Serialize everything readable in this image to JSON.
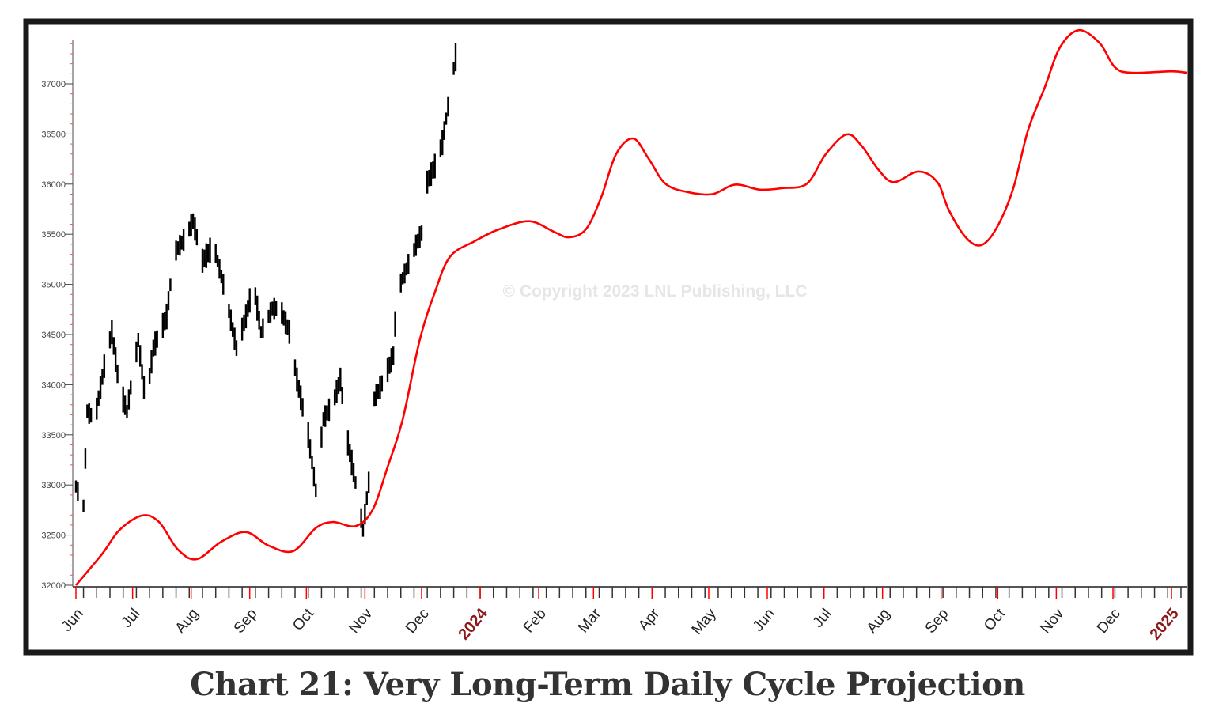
{
  "chart_data": {
    "type": "line",
    "title": "Chart 21: Very Long-Term Daily Cycle Projection",
    "watermark": "© Copyright 2023 LNL Publishing, LLC",
    "xlabel": "",
    "ylabel": "",
    "xlim": [
      "2023-06-01",
      "2025-01-09"
    ],
    "ylim": [
      32000,
      37560
    ],
    "y_ticks": [
      32000,
      32500,
      33000,
      33500,
      34000,
      34500,
      35000,
      35500,
      36000,
      36500,
      37000
    ],
    "x_ticks": [
      {
        "date": "2023-06-01",
        "label": "Jun"
      },
      {
        "date": "2023-07-01",
        "label": "Jul"
      },
      {
        "date": "2023-08-01",
        "label": "Aug"
      },
      {
        "date": "2023-09-01",
        "label": "Sep"
      },
      {
        "date": "2023-10-01",
        "label": "Oct"
      },
      {
        "date": "2023-11-01",
        "label": "Nov"
      },
      {
        "date": "2023-12-01",
        "label": "Dec"
      },
      {
        "date": "2024-01-01",
        "label": "2024",
        "year": true
      },
      {
        "date": "2024-02-01",
        "label": "Feb"
      },
      {
        "date": "2024-03-01",
        "label": "Mar"
      },
      {
        "date": "2024-04-01",
        "label": "Apr"
      },
      {
        "date": "2024-05-01",
        "label": "May"
      },
      {
        "date": "2024-06-01",
        "label": "Jun"
      },
      {
        "date": "2024-07-01",
        "label": "Jul"
      },
      {
        "date": "2024-08-01",
        "label": "Aug"
      },
      {
        "date": "2024-09-01",
        "label": "Sep"
      },
      {
        "date": "2024-10-01",
        "label": "Oct"
      },
      {
        "date": "2024-11-01",
        "label": "Nov"
      },
      {
        "date": "2024-12-01",
        "label": "Dec"
      },
      {
        "date": "2025-01-01",
        "label": "2025",
        "year": true
      }
    ],
    "grid": false,
    "series": [
      {
        "style": "daily price bars",
        "color": "#000000",
        "points": [
          [
            "2023-06-01",
            32985
          ],
          [
            "2023-06-05",
            32790
          ],
          [
            "2023-06-07",
            33735
          ],
          [
            "2023-06-11",
            33655
          ],
          [
            "2023-06-17",
            34290
          ],
          [
            "2023-06-20",
            34525
          ],
          [
            "2023-06-24",
            33970
          ],
          [
            "2023-06-28",
            33735
          ],
          [
            "2023-07-04",
            34445
          ],
          [
            "2023-07-08",
            33815
          ],
          [
            "2023-07-12",
            34365
          ],
          [
            "2023-07-19",
            34680
          ],
          [
            "2023-07-23",
            35310
          ],
          [
            "2023-07-29",
            35470
          ],
          [
            "2023-08-02",
            35630
          ],
          [
            "2023-08-07",
            35235
          ],
          [
            "2023-08-13",
            35390
          ],
          [
            "2023-08-19",
            34920
          ],
          [
            "2023-08-25",
            34365
          ],
          [
            "2023-08-30",
            34680
          ],
          [
            "2023-09-03",
            35000
          ],
          [
            "2023-09-07",
            34525
          ],
          [
            "2023-09-13",
            34760
          ],
          [
            "2023-09-17",
            34760
          ],
          [
            "2023-09-22",
            34525
          ],
          [
            "2023-09-26",
            34050
          ],
          [
            "2023-10-02",
            33500
          ],
          [
            "2023-10-06",
            32945
          ],
          [
            "2023-10-10",
            33655
          ],
          [
            "2023-10-15",
            33815
          ],
          [
            "2023-10-19",
            34050
          ],
          [
            "2023-10-23",
            33420
          ],
          [
            "2023-10-27",
            33025
          ],
          [
            "2023-10-31",
            32550
          ],
          [
            "2023-11-03",
            33025
          ],
          [
            "2023-11-05",
            33815
          ],
          [
            "2023-11-11",
            34050
          ],
          [
            "2023-11-16",
            34290
          ],
          [
            "2023-11-18",
            34920
          ],
          [
            "2023-11-23",
            35155
          ],
          [
            "2023-11-28",
            35390
          ],
          [
            "2023-12-02",
            35550
          ],
          [
            "2023-12-04",
            36020
          ],
          [
            "2023-12-08",
            36180
          ],
          [
            "2023-12-12",
            36415
          ],
          [
            "2023-12-16",
            36890
          ],
          [
            "2023-12-19",
            37285
          ]
        ]
      },
      {
        "style": "cycle projection",
        "color": "#ff0000",
        "points": [
          [
            "2023-06-01",
            32000
          ],
          [
            "2023-06-15",
            32315
          ],
          [
            "2023-06-24",
            32550
          ],
          [
            "2023-07-06",
            32695
          ],
          [
            "2023-07-15",
            32630
          ],
          [
            "2023-07-25",
            32355
          ],
          [
            "2023-08-04",
            32260
          ],
          [
            "2023-08-17",
            32435
          ],
          [
            "2023-08-30",
            32530
          ],
          [
            "2023-09-11",
            32395
          ],
          [
            "2023-09-24",
            32340
          ],
          [
            "2023-10-06",
            32570
          ],
          [
            "2023-10-15",
            32630
          ],
          [
            "2023-10-27",
            32590
          ],
          [
            "2023-11-05",
            32750
          ],
          [
            "2023-11-13",
            33180
          ],
          [
            "2023-11-21",
            33655
          ],
          [
            "2023-11-30",
            34445
          ],
          [
            "2023-12-08",
            34920
          ],
          [
            "2023-12-16",
            35275
          ],
          [
            "2023-12-29",
            35430
          ],
          [
            "2024-01-11",
            35550
          ],
          [
            "2024-01-27",
            35630
          ],
          [
            "2024-02-09",
            35525
          ],
          [
            "2024-02-17",
            35470
          ],
          [
            "2024-02-26",
            35550
          ],
          [
            "2024-03-05",
            35865
          ],
          [
            "2024-03-13",
            36300
          ],
          [
            "2024-03-22",
            36455
          ],
          [
            "2024-03-30",
            36260
          ],
          [
            "2024-04-08",
            36005
          ],
          [
            "2024-04-20",
            35920
          ],
          [
            "2024-05-03",
            35900
          ],
          [
            "2024-05-15",
            35995
          ],
          [
            "2024-05-28",
            35945
          ],
          [
            "2024-06-09",
            35960
          ],
          [
            "2024-06-22",
            36005
          ],
          [
            "2024-07-02",
            36300
          ],
          [
            "2024-07-13",
            36495
          ],
          [
            "2024-07-21",
            36380
          ],
          [
            "2024-07-30",
            36140
          ],
          [
            "2024-08-07",
            36020
          ],
          [
            "2024-08-20",
            36125
          ],
          [
            "2024-08-30",
            36020
          ],
          [
            "2024-09-05",
            35745
          ],
          [
            "2024-09-14",
            35470
          ],
          [
            "2024-09-22",
            35390
          ],
          [
            "2024-09-30",
            35550
          ],
          [
            "2024-10-09",
            35945
          ],
          [
            "2024-10-17",
            36535
          ],
          [
            "2024-10-26",
            36970
          ],
          [
            "2024-11-03",
            37365
          ],
          [
            "2024-11-13",
            37535
          ],
          [
            "2024-11-24",
            37405
          ],
          [
            "2024-12-02",
            37165
          ],
          [
            "2024-12-11",
            37110
          ],
          [
            "2025-01-01",
            37125
          ],
          [
            "2025-01-09",
            37110
          ]
        ]
      }
    ],
    "colors": {
      "frame": "#1a1a1a",
      "month_tick": "#ff0000",
      "year_label": "#8b1a1a",
      "title": "#333333"
    }
  }
}
